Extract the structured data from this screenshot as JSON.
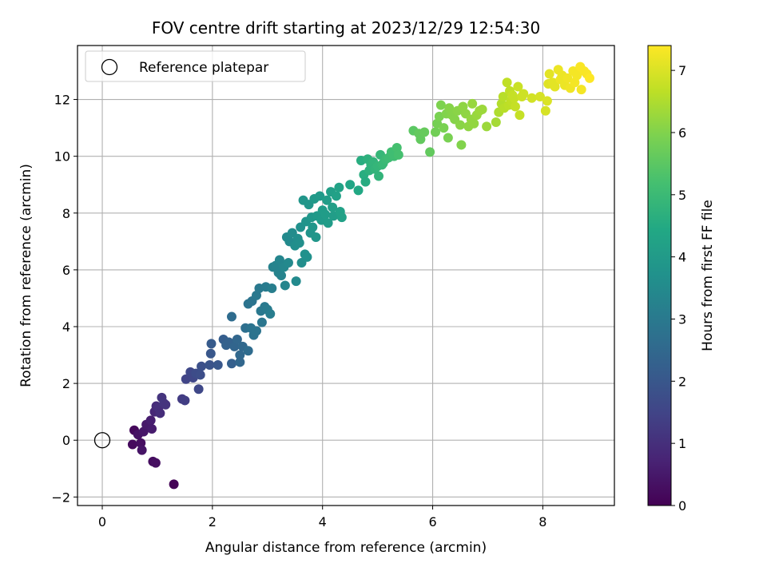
{
  "chart_data": {
    "type": "scatter",
    "title": "FOV centre drift starting at 2023/12/29 12:54:30",
    "xlabel": "Angular distance from reference (arcmin)",
    "ylabel": "Rotation from reference (arcmin)",
    "xlim": [
      -0.45,
      9.3
    ],
    "ylim": [
      -2.3,
      13.9
    ],
    "xticks": [
      0,
      2,
      4,
      6,
      8
    ],
    "yticks": [
      -2,
      0,
      2,
      4,
      6,
      8,
      10,
      12
    ],
    "grid": true,
    "legend": {
      "placement": "top-left",
      "entries": [
        "Reference platepar"
      ]
    },
    "reference_point": {
      "x": 0,
      "y": 0
    },
    "colorbar": {
      "label": "Hours from first FF file",
      "colormap": "viridis",
      "range": [
        0,
        7.4
      ],
      "ticks": [
        0,
        1,
        2,
        3,
        4,
        5,
        6,
        7
      ]
    },
    "points": [
      [
        1.3,
        -1.55,
        0.05
      ],
      [
        0.92,
        -0.75,
        0.25
      ],
      [
        0.97,
        -0.8,
        0.3
      ],
      [
        0.55,
        -0.15,
        0.2
      ],
      [
        0.58,
        0.35,
        0.15
      ],
      [
        0.65,
        0.2,
        0.35
      ],
      [
        0.7,
        -0.1,
        0.3
      ],
      [
        0.72,
        -0.35,
        0.4
      ],
      [
        0.75,
        0.3,
        0.45
      ],
      [
        0.8,
        0.55,
        0.5
      ],
      [
        0.88,
        0.7,
        0.6
      ],
      [
        0.9,
        0.4,
        0.55
      ],
      [
        0.95,
        1.0,
        0.8
      ],
      [
        0.98,
        1.2,
        0.9
      ],
      [
        1.02,
        1.15,
        1.0
      ],
      [
        1.05,
        0.95,
        0.95
      ],
      [
        1.08,
        1.5,
        1.1
      ],
      [
        1.12,
        1.3,
        1.15
      ],
      [
        1.15,
        1.25,
        1.1
      ],
      [
        1.45,
        1.45,
        1.3
      ],
      [
        1.5,
        1.4,
        1.35
      ],
      [
        1.52,
        2.15,
        1.5
      ],
      [
        1.6,
        2.4,
        1.6
      ],
      [
        1.65,
        2.2,
        1.55
      ],
      [
        1.7,
        2.35,
        1.7
      ],
      [
        1.75,
        1.8,
        1.6
      ],
      [
        1.8,
        2.6,
        1.8
      ],
      [
        1.78,
        2.3,
        1.75
      ],
      [
        1.95,
        2.65,
        1.9
      ],
      [
        1.97,
        3.05,
        2.0
      ],
      [
        1.98,
        3.4,
        2.1
      ],
      [
        2.1,
        2.65,
        2.0
      ],
      [
        2.2,
        3.55,
        2.2
      ],
      [
        2.25,
        3.35,
        2.3
      ],
      [
        2.3,
        3.45,
        2.3
      ],
      [
        2.35,
        2.7,
        2.25
      ],
      [
        2.35,
        4.35,
        2.6
      ],
      [
        2.4,
        3.3,
        2.4
      ],
      [
        2.45,
        3.55,
        2.45
      ],
      [
        2.5,
        3.0,
        2.5
      ],
      [
        2.5,
        2.75,
        2.45
      ],
      [
        2.55,
        3.3,
        2.5
      ],
      [
        2.6,
        3.95,
        2.7
      ],
      [
        2.65,
        3.15,
        2.6
      ],
      [
        2.65,
        4.8,
        2.8
      ],
      [
        2.7,
        3.95,
        2.8
      ],
      [
        2.72,
        4.9,
        2.85
      ],
      [
        2.75,
        3.7,
        2.8
      ],
      [
        2.8,
        5.1,
        2.95
      ],
      [
        2.8,
        3.85,
        2.85
      ],
      [
        2.85,
        5.35,
        3.0
      ],
      [
        2.88,
        4.55,
        2.95
      ],
      [
        2.9,
        4.15,
        2.9
      ],
      [
        2.95,
        4.7,
        3.0
      ],
      [
        2.97,
        5.4,
        3.05
      ],
      [
        3.0,
        4.6,
        3.05
      ],
      [
        3.05,
        4.45,
        3.1
      ],
      [
        3.08,
        5.35,
        3.15
      ],
      [
        3.1,
        6.1,
        3.25
      ],
      [
        3.15,
        6.15,
        3.3
      ],
      [
        3.2,
        5.9,
        3.3
      ],
      [
        3.22,
        6.35,
        3.35
      ],
      [
        3.25,
        5.8,
        3.3
      ],
      [
        3.3,
        6.1,
        3.4
      ],
      [
        3.32,
        5.45,
        3.35
      ],
      [
        3.35,
        7.15,
        3.5
      ],
      [
        3.38,
        6.25,
        3.45
      ],
      [
        3.4,
        7.0,
        3.5
      ],
      [
        3.45,
        7.3,
        3.55
      ],
      [
        3.5,
        6.85,
        3.6
      ],
      [
        3.52,
        5.6,
        3.5
      ],
      [
        3.55,
        7.1,
        3.6
      ],
      [
        3.58,
        6.95,
        3.65
      ],
      [
        3.6,
        7.5,
        3.7
      ],
      [
        3.62,
        6.25,
        3.6
      ],
      [
        3.65,
        8.45,
        3.85
      ],
      [
        3.68,
        6.55,
        3.7
      ],
      [
        3.7,
        7.7,
        3.8
      ],
      [
        3.72,
        6.45,
        3.7
      ],
      [
        3.75,
        8.3,
        3.85
      ],
      [
        3.78,
        7.3,
        3.8
      ],
      [
        3.8,
        7.85,
        3.9
      ],
      [
        3.82,
        7.5,
        3.85
      ],
      [
        3.85,
        8.5,
        3.95
      ],
      [
        3.88,
        7.15,
        3.85
      ],
      [
        3.9,
        7.9,
        3.95
      ],
      [
        3.95,
        8.6,
        4.0
      ],
      [
        3.98,
        7.75,
        4.0
      ],
      [
        4.0,
        8.1,
        4.05
      ],
      [
        4.05,
        7.95,
        4.05
      ],
      [
        4.08,
        8.45,
        4.1
      ],
      [
        4.1,
        7.65,
        4.05
      ],
      [
        4.15,
        8.75,
        4.15
      ],
      [
        4.18,
        8.2,
        4.15
      ],
      [
        4.2,
        7.9,
        4.1
      ],
      [
        4.25,
        8.6,
        4.2
      ],
      [
        4.3,
        8.9,
        4.25
      ],
      [
        4.32,
        8.05,
        4.2
      ],
      [
        4.35,
        7.85,
        4.2
      ],
      [
        4.5,
        9.0,
        4.35
      ],
      [
        4.65,
        8.8,
        4.45
      ],
      [
        4.7,
        9.85,
        4.6
      ],
      [
        4.75,
        9.35,
        4.6
      ],
      [
        4.78,
        9.1,
        4.55
      ],
      [
        4.82,
        9.9,
        4.7
      ],
      [
        4.85,
        9.5,
        4.7
      ],
      [
        4.88,
        9.7,
        4.75
      ],
      [
        4.92,
        9.8,
        4.8
      ],
      [
        4.95,
        9.55,
        4.8
      ],
      [
        5.0,
        9.65,
        4.85
      ],
      [
        5.02,
        9.3,
        4.8
      ],
      [
        5.05,
        10.05,
        4.9
      ],
      [
        5.08,
        9.7,
        4.9
      ],
      [
        5.1,
        9.75,
        4.95
      ],
      [
        5.15,
        9.9,
        5.0
      ],
      [
        5.2,
        9.95,
        5.05
      ],
      [
        5.25,
        10.15,
        5.1
      ],
      [
        5.3,
        10.0,
        5.1
      ],
      [
        5.35,
        10.3,
        5.2
      ],
      [
        5.38,
        10.05,
        5.2
      ],
      [
        5.65,
        10.9,
        5.5
      ],
      [
        5.75,
        10.8,
        5.6
      ],
      [
        5.78,
        10.6,
        5.6
      ],
      [
        5.85,
        10.85,
        5.65
      ],
      [
        5.95,
        10.15,
        5.6
      ],
      [
        6.05,
        10.85,
        5.8
      ],
      [
        6.08,
        11.15,
        5.85
      ],
      [
        6.12,
        11.4,
        5.9
      ],
      [
        6.15,
        11.8,
        5.95
      ],
      [
        6.2,
        11.0,
        5.9
      ],
      [
        6.25,
        11.5,
        6.0
      ],
      [
        6.28,
        10.65,
        5.9
      ],
      [
        6.3,
        11.7,
        6.05
      ],
      [
        6.35,
        11.45,
        6.05
      ],
      [
        6.4,
        11.3,
        6.05
      ],
      [
        6.45,
        11.6,
        6.1
      ],
      [
        6.5,
        11.1,
        6.1
      ],
      [
        6.52,
        10.4,
        6.0
      ],
      [
        6.55,
        11.75,
        6.15
      ],
      [
        6.6,
        11.5,
        6.15
      ],
      [
        6.65,
        11.05,
        6.15
      ],
      [
        6.7,
        11.3,
        6.2
      ],
      [
        6.72,
        11.85,
        6.25
      ],
      [
        6.75,
        11.15,
        6.2
      ],
      [
        6.8,
        11.45,
        6.25
      ],
      [
        6.85,
        11.6,
        6.3
      ],
      [
        6.9,
        11.65,
        6.3
      ],
      [
        6.98,
        11.05,
        6.3
      ],
      [
        7.15,
        11.2,
        6.4
      ],
      [
        7.2,
        11.55,
        6.5
      ],
      [
        7.25,
        11.85,
        6.55
      ],
      [
        7.28,
        12.1,
        6.6
      ],
      [
        7.3,
        11.7,
        6.6
      ],
      [
        7.35,
        12.6,
        6.7
      ],
      [
        7.38,
        11.8,
        6.65
      ],
      [
        7.4,
        12.3,
        6.7
      ],
      [
        7.42,
        11.95,
        6.7
      ],
      [
        7.45,
        12.15,
        6.75
      ],
      [
        7.48,
        12.05,
        6.75
      ],
      [
        7.5,
        11.75,
        6.75
      ],
      [
        7.55,
        12.45,
        6.8
      ],
      [
        7.58,
        11.45,
        6.75
      ],
      [
        7.62,
        12.1,
        6.85
      ],
      [
        7.65,
        12.2,
        6.85
      ],
      [
        7.8,
        12.05,
        6.9
      ],
      [
        7.95,
        12.1,
        6.95
      ],
      [
        8.05,
        11.6,
        6.95
      ],
      [
        8.08,
        11.95,
        7.0
      ],
      [
        8.1,
        12.55,
        7.05
      ],
      [
        8.12,
        12.9,
        7.1
      ],
      [
        8.18,
        12.6,
        7.1
      ],
      [
        8.22,
        12.45,
        7.1
      ],
      [
        8.28,
        13.05,
        7.2
      ],
      [
        8.32,
        12.7,
        7.2
      ],
      [
        8.35,
        12.85,
        7.2
      ],
      [
        8.4,
        12.5,
        7.2
      ],
      [
        8.45,
        12.75,
        7.25
      ],
      [
        8.5,
        12.4,
        7.25
      ],
      [
        8.55,
        13.0,
        7.3
      ],
      [
        8.58,
        12.6,
        7.3
      ],
      [
        8.62,
        12.85,
        7.3
      ],
      [
        8.68,
        13.15,
        7.35
      ],
      [
        8.7,
        12.35,
        7.3
      ],
      [
        8.75,
        13.0,
        7.35
      ],
      [
        8.8,
        12.9,
        7.35
      ],
      [
        8.85,
        12.75,
        7.4
      ]
    ]
  }
}
